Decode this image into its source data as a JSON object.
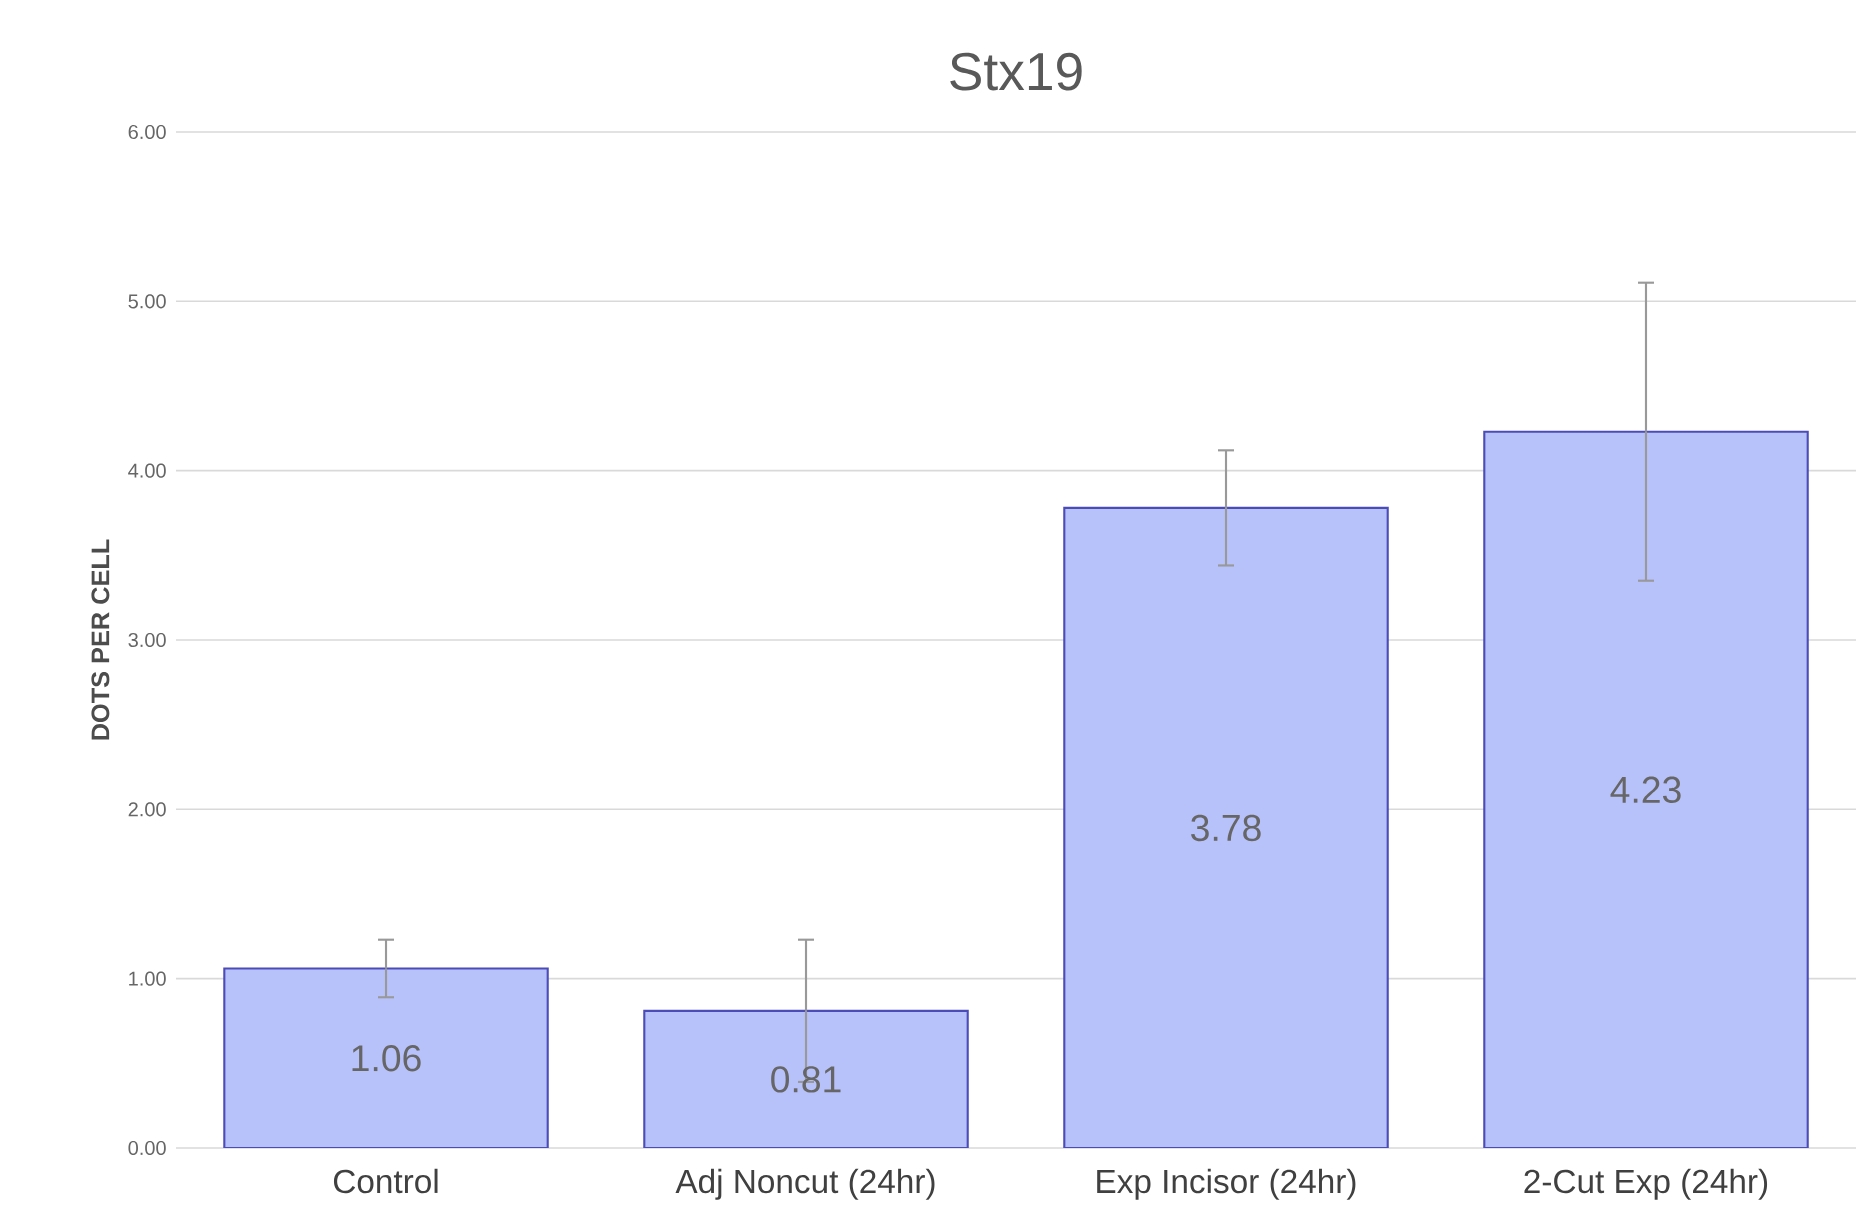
{
  "chart_data": {
    "type": "bar",
    "title": "Stx19",
    "ylabel": "DOTS PER CELL",
    "categories": [
      "Control",
      "Adj Noncut (24hr)",
      "Exp Incisor (24hr)",
      "2-Cut Exp (24hr)"
    ],
    "values": [
      1.06,
      0.81,
      3.78,
      4.23
    ],
    "errors": [
      0.17,
      0.42,
      0.34,
      0.88
    ],
    "color": "#b8c2fa",
    "ylim": [
      0,
      6
    ],
    "yticks": [
      {
        "value": 0,
        "label": "0.00"
      },
      {
        "value": 1,
        "label": "1.00"
      },
      {
        "value": 2,
        "label": "2.00"
      },
      {
        "value": 3,
        "label": "3.00"
      },
      {
        "value": 4,
        "label": "4.00"
      },
      {
        "value": 5,
        "label": "5.00"
      },
      {
        "value": 6,
        "label": "6.00"
      }
    ],
    "grid": "y",
    "data_labels": true
  }
}
